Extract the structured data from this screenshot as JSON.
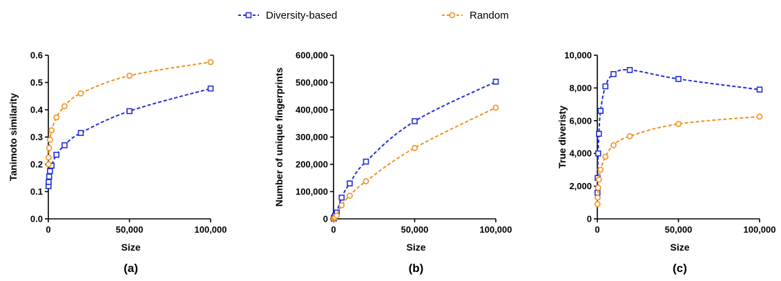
{
  "legend": {
    "items": [
      {
        "label": "Diversity-based",
        "color": "#1f2fd6",
        "marker": "square"
      },
      {
        "label": "Random",
        "color": "#f0901e",
        "marker": "circle"
      }
    ]
  },
  "chart_data": [
    {
      "panel_label": "(a)",
      "type": "line",
      "xlabel": "Size",
      "ylabel": "Tanimoto similarity",
      "xlim": [
        0,
        100000
      ],
      "ylim": [
        0,
        0.6
      ],
      "xticks": [
        0,
        50000,
        100000
      ],
      "xtick_labels": [
        "0",
        "50,000",
        "100,000"
      ],
      "yticks": [
        0,
        0.1,
        0.2,
        0.3,
        0.4,
        0.5,
        0.6
      ],
      "ytick_labels": [
        "0.0",
        "0.1",
        "0.2",
        "0.3",
        "0.4",
        "0.5",
        "0.6"
      ],
      "x": [
        100,
        200,
        500,
        1000,
        2000,
        5000,
        10000,
        20000,
        50000,
        100000
      ],
      "series": [
        {
          "name": "Diversity-based",
          "values": [
            0.12,
            0.135,
            0.155,
            0.175,
            0.195,
            0.235,
            0.27,
            0.315,
            0.395,
            0.478
          ]
        },
        {
          "name": "Random",
          "values": [
            0.2,
            0.225,
            0.26,
            0.29,
            0.325,
            0.372,
            0.413,
            0.46,
            0.525,
            0.575
          ]
        }
      ]
    },
    {
      "panel_label": "(b)",
      "type": "line",
      "xlabel": "Size",
      "ylabel": "Number of unique fingerprints",
      "xlim": [
        0,
        100000
      ],
      "ylim": [
        0,
        600000
      ],
      "xticks": [
        0,
        50000,
        100000
      ],
      "xtick_labels": [
        "0",
        "50,000",
        "100,000"
      ],
      "yticks": [
        0,
        100000,
        200000,
        300000,
        400000,
        500000,
        600000
      ],
      "ytick_labels": [
        "0",
        "100,000",
        "200,000",
        "300,000",
        "400,000",
        "500,000",
        "600,000"
      ],
      "x": [
        100,
        200,
        500,
        1000,
        2000,
        5000,
        10000,
        20000,
        50000,
        100000
      ],
      "series": [
        {
          "name": "Diversity-based",
          "values": [
            1000,
            2500,
            6000,
            12000,
            23000,
            78000,
            130000,
            210000,
            358000,
            503000
          ]
        },
        {
          "name": "Random",
          "values": [
            500,
            1200,
            3000,
            6000,
            12000,
            50000,
            85000,
            138000,
            260000,
            408000
          ]
        }
      ]
    },
    {
      "panel_label": "(c)",
      "type": "line",
      "xlabel": "Size",
      "ylabel": "True diveristy",
      "xlim": [
        0,
        100000
      ],
      "ylim": [
        0,
        10000
      ],
      "xticks": [
        0,
        50000,
        100000
      ],
      "xtick_labels": [
        "0",
        "50,000",
        "100,000"
      ],
      "yticks": [
        0,
        2000,
        4000,
        6000,
        8000,
        10000
      ],
      "ytick_labels": [
        "0",
        "2,000",
        "4,000",
        "6,000",
        "8,000",
        "10,000"
      ],
      "x": [
        100,
        200,
        500,
        1000,
        2000,
        5000,
        10000,
        20000,
        50000,
        100000
      ],
      "series": [
        {
          "name": "Diversity-based",
          "values": [
            1600,
            2500,
            4000,
            5200,
            6600,
            8100,
            8850,
            9100,
            8550,
            7900
          ]
        },
        {
          "name": "Random",
          "values": [
            900,
            1300,
            1900,
            2400,
            3000,
            3800,
            4500,
            5050,
            5800,
            6250
          ]
        }
      ]
    }
  ]
}
